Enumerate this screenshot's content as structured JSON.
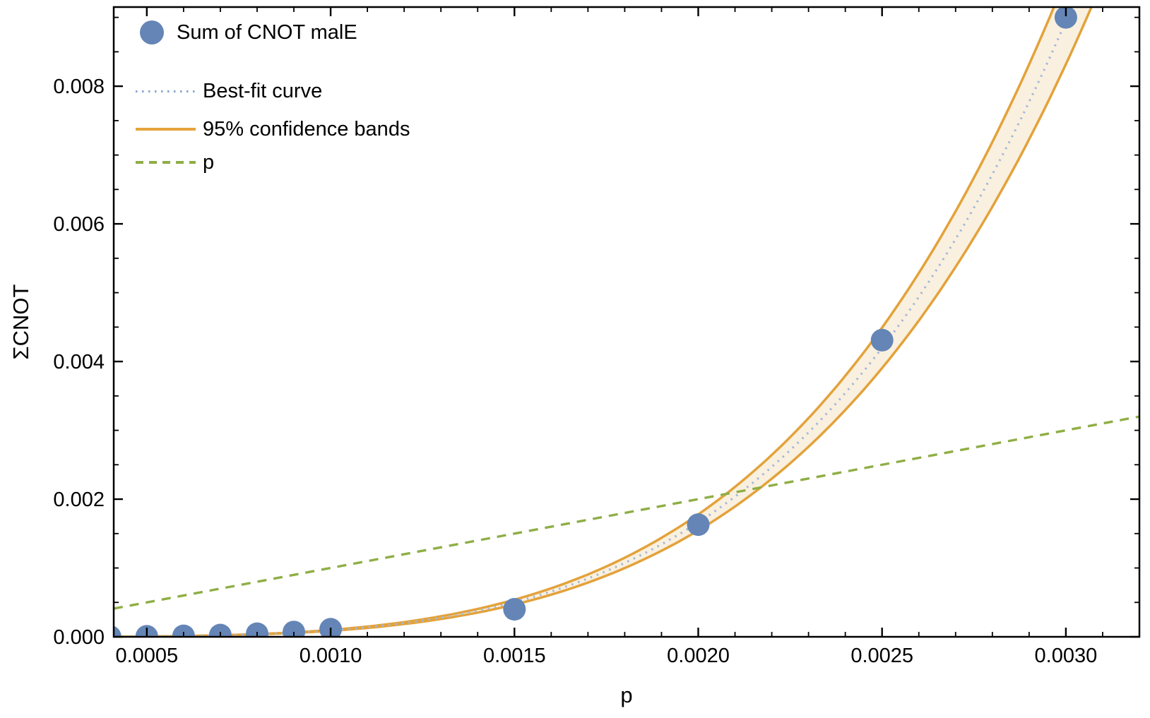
{
  "figure": {
    "background": "#ffffff",
    "text_color": "#000000",
    "frame_color": "#000000"
  },
  "legend": {
    "position": "top-left",
    "items": [
      {
        "label": "Sum of CNOT malE",
        "marker": "disc",
        "color": "#6485b6"
      },
      {
        "label": "Best-fit curve",
        "marker": "dotted-line",
        "color": "#8aa5cf"
      },
      {
        "label": "95% confidence bands",
        "marker": "solid-line",
        "color": "#e5a33c"
      },
      {
        "label": "p",
        "marker": "dashed-line",
        "color": "#8fae45"
      }
    ]
  },
  "chart_data": {
    "type": "scatter",
    "title": "",
    "xlabel": "p",
    "ylabel": "ΣCNOT",
    "xlim": [
      0.00041,
      0.0032
    ],
    "ylim": [
      0,
      0.00915
    ],
    "grid": false,
    "legend_position": "top-left",
    "x_ticks": {
      "major": [
        0.0005,
        0.001,
        0.0015,
        0.002,
        0.0025,
        0.003
      ],
      "labels": [
        "0.0005",
        "0.0010",
        "0.0015",
        "0.0020",
        "0.0025",
        "0.0030"
      ],
      "minor_step": 0.0001
    },
    "y_ticks": {
      "major": [
        0,
        0.002,
        0.004,
        0.006,
        0.008
      ],
      "labels": [
        "0.000",
        "0.002",
        "0.004",
        "0.006",
        "0.008"
      ],
      "minor_step": 0.0005
    },
    "series": [
      {
        "name": "Sum of CNOT malE",
        "kind": "points",
        "color": "#6485b6",
        "point_radius_px": 16,
        "points": [
          [
            0.0004,
            3e-06
          ],
          [
            0.0005,
            7e-06
          ],
          [
            0.0006,
            1.4e-05
          ],
          [
            0.0007,
            2.6e-05
          ],
          [
            0.0008,
            4.5e-05
          ],
          [
            0.0009,
            7e-05
          ],
          [
            0.001,
            0.00011
          ],
          [
            0.0015,
            0.0004
          ],
          [
            0.002,
            0.00163
          ],
          [
            0.0025,
            0.00431
          ],
          [
            0.003,
            0.009
          ]
        ]
      },
      {
        "name": "Best-fit curve",
        "kind": "power-fit-curve",
        "model": "y = A * p^b",
        "A": 264000000,
        "b": 4.15,
        "color": "#a3b9d9"
      },
      {
        "name": "95% confidence bands",
        "kind": "confidence-band",
        "band_fraction": 0.07,
        "stroke_color": "#e3a23a",
        "fill_color": "rgba(227,162,58,0.16)"
      },
      {
        "name": "p",
        "kind": "identity-line",
        "equation": "y = p",
        "color": "#8fae45"
      }
    ]
  }
}
